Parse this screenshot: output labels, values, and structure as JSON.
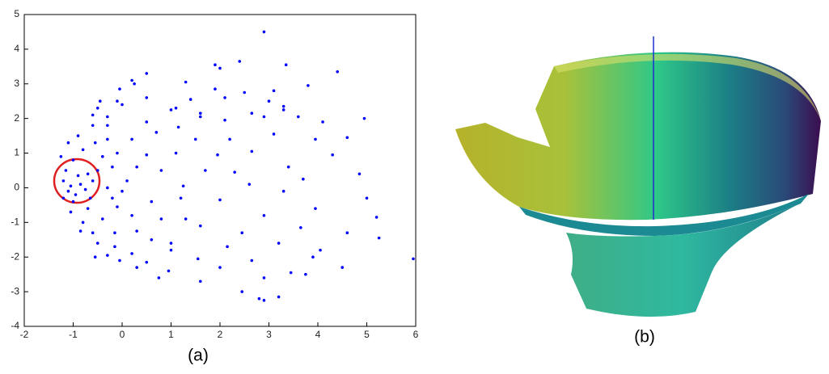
{
  "chart_data": {
    "type": "scatter",
    "caption": "(a)",
    "color": "#0000ff",
    "xlim": [
      -2,
      6
    ],
    "ylim": [
      -4,
      5
    ],
    "xticks": [
      -2,
      -1,
      0,
      1,
      2,
      3,
      4,
      5,
      6
    ],
    "yticks": [
      -4,
      -3,
      -2,
      -1,
      0,
      1,
      2,
      3,
      4,
      5
    ],
    "x": [
      2.9,
      1.9,
      2.0,
      2.4,
      3.35,
      4.4,
      0.5,
      0.2,
      0.25,
      -0.05,
      1.3,
      1.9,
      3.8,
      3.1,
      2.5,
      3.0,
      1.4,
      0.5,
      -0.1,
      0.0,
      3.3,
      2.1,
      3.3,
      1.0,
      1.1,
      1.6,
      1.6,
      2.65,
      2.9,
      3.6,
      4.95,
      4.1,
      2.1,
      1.15,
      0.5,
      -0.3,
      -0.6,
      -0.3,
      -0.5,
      -0.45,
      -0.6,
      3.95,
      4.6,
      4.3,
      3.1,
      2.2,
      1.5,
      0.7,
      0.2,
      2.65,
      1.95,
      1.1,
      0.5,
      -0.1,
      3.4,
      2.3,
      3.7,
      4.85,
      1.7,
      0.8,
      0.1,
      2.6,
      1.25,
      5.0,
      3.3,
      2.0,
      0.6,
      -0.1,
      3.95,
      2.9,
      1.3,
      0.2,
      5.2,
      4.6,
      3.65,
      2.45,
      1.6,
      0.3,
      5.25,
      4.05,
      3.2,
      2.15,
      1.0,
      -0.15,
      0.2,
      3.9,
      2.65,
      1.55,
      0.5,
      -0.05,
      5.95,
      4.5,
      3.45,
      2.0,
      0.95,
      0.3,
      0.75,
      1.6,
      2.9,
      3.75,
      2.45,
      2.8,
      2.9,
      3.2,
      -0.3,
      -0.5,
      -0.6,
      -0.8,
      -0.4,
      -0.7,
      -1.0,
      -1.1,
      -1.2,
      -1.15,
      -1.0,
      -0.8,
      -1.1,
      -0.9,
      -0.7,
      -0.85,
      -0.95,
      -0.75,
      -0.6,
      -0.9,
      -1.05,
      -0.65,
      -0.5,
      -0.4,
      -0.3,
      -0.2,
      -0.55,
      -0.3,
      -0.2,
      -1.2,
      -1.25,
      -1.05,
      -0.85,
      -0.55,
      -0.15,
      0.0,
      0.3,
      0.6,
      1.0,
      1.2,
      0.8
    ],
    "y": [
      4.5,
      3.55,
      3.45,
      3.65,
      3.55,
      3.35,
      3.3,
      3.1,
      3.0,
      2.85,
      3.05,
      2.85,
      2.95,
      2.8,
      2.75,
      2.5,
      2.55,
      2.6,
      2.5,
      2.4,
      2.25,
      2.6,
      2.35,
      2.25,
      2.3,
      2.15,
      2.05,
      2.15,
      2.05,
      2.05,
      2.0,
      1.9,
      1.95,
      1.75,
      1.9,
      1.8,
      1.8,
      2.05,
      2.3,
      2.5,
      2.1,
      1.4,
      1.45,
      0.95,
      1.55,
      1.4,
      1.4,
      1.6,
      1.4,
      1.05,
      0.95,
      1.0,
      0.95,
      1.0,
      0.6,
      0.45,
      0.25,
      0.4,
      0.5,
      0.5,
      0.2,
      0.1,
      0.05,
      -0.3,
      -0.1,
      -0.35,
      -0.4,
      -0.55,
      -0.6,
      -0.8,
      -0.9,
      -0.8,
      -0.85,
      -1.3,
      -1.15,
      -1.3,
      -1.1,
      -1.25,
      -1.45,
      -1.8,
      -1.6,
      -1.7,
      -1.6,
      -1.7,
      -1.9,
      -2.0,
      -2.1,
      -2.05,
      -2.15,
      -2.1,
      -2.05,
      -2.3,
      -2.45,
      -2.3,
      -2.4,
      -2.3,
      -2.6,
      -2.7,
      -2.6,
      -2.5,
      -3.0,
      -3.2,
      -3.25,
      -3.15,
      -1.95,
      -1.6,
      -1.3,
      -1.0,
      -0.9,
      -0.6,
      -0.4,
      -0.1,
      0.2,
      0.5,
      0.8,
      1.1,
      1.3,
      1.5,
      0.4,
      0.1,
      -0.2,
      -0.05,
      0.2,
      0.35,
      0.05,
      -0.3,
      0.5,
      0.9,
      0.0,
      -0.3,
      1.3,
      1.4,
      0.6,
      -0.3,
      0.9,
      -0.7,
      -1.25,
      -2.0,
      -1.3,
      -0.1,
      0.6,
      -1.5,
      -1.8,
      -0.3,
      -0.9
    ]
  },
  "figure_b": {
    "caption": "(b)"
  }
}
